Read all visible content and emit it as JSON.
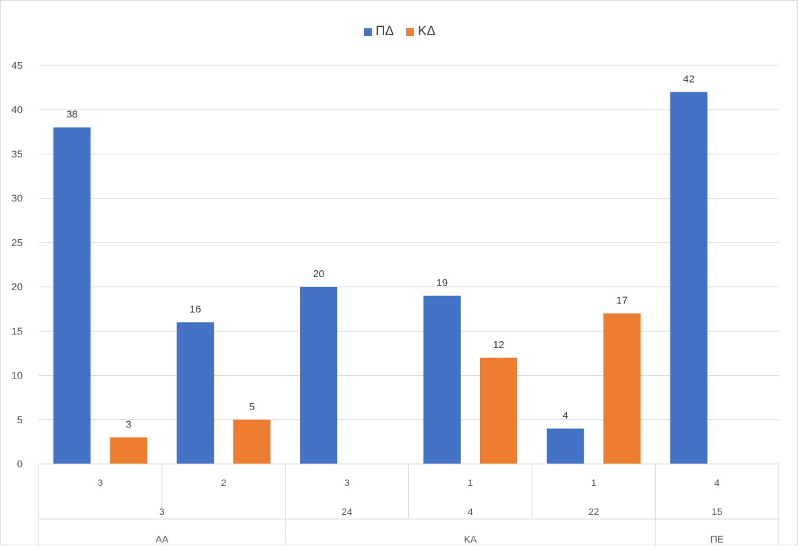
{
  "chart_data": {
    "type": "bar",
    "series": [
      {
        "name": "ΠΔ",
        "color": "#4472C4",
        "values": [
          38,
          16,
          20,
          19,
          4,
          42
        ]
      },
      {
        "name": "ΚΔ",
        "color": "#ED7D31",
        "values": [
          3,
          5,
          null,
          12,
          17,
          null
        ]
      }
    ],
    "categories_level1": [
      "3",
      "2",
      "3",
      "1",
      "1",
      "4"
    ],
    "categories_level2": [
      "3",
      "24",
      "4",
      "22",
      "15"
    ],
    "categories_level3": [
      "ΑΑ",
      "ΚΑ",
      "ΠΕ"
    ],
    "ylim": [
      0,
      45
    ],
    "yticks": [
      0,
      5,
      10,
      15,
      20,
      25,
      30,
      35,
      40,
      45
    ],
    "grid": true,
    "legend": "top-center",
    "title": "",
    "xlabel": "",
    "ylabel": ""
  }
}
